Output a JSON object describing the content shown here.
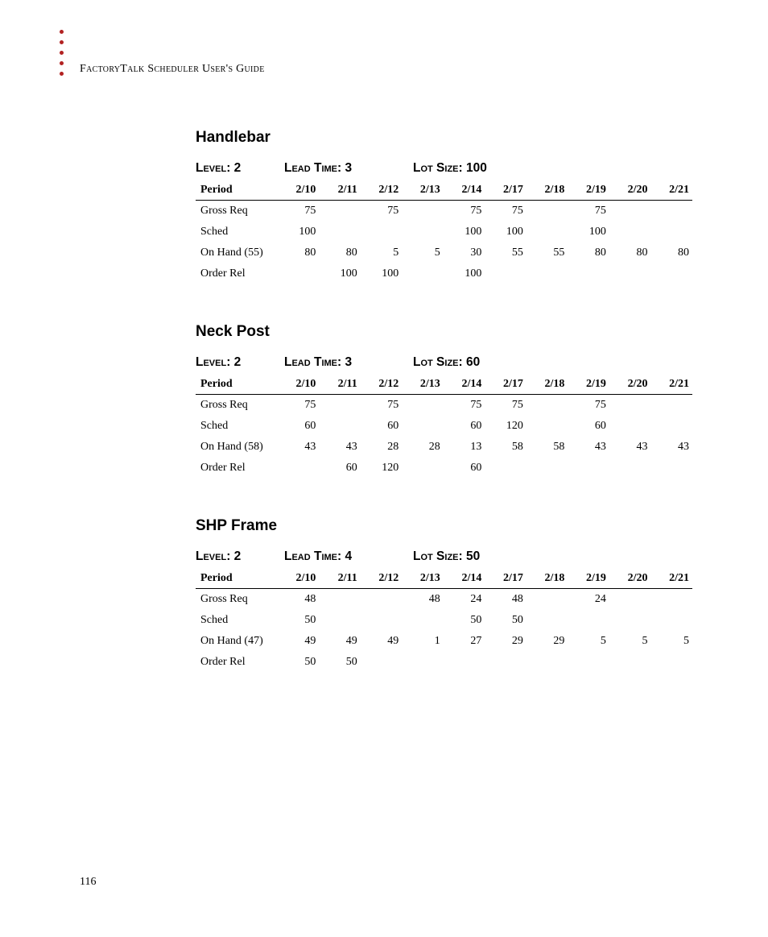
{
  "header": "FactoryTalk Scheduler User's Guide",
  "pageNumber": "116",
  "periods": [
    "2/10",
    "2/11",
    "2/12",
    "2/13",
    "2/14",
    "2/17",
    "2/18",
    "2/19",
    "2/20",
    "2/21"
  ],
  "sections": [
    {
      "title": "Handlebar",
      "level": "Level: 2",
      "lead": "Lead Time: 3",
      "lot": "Lot Size: 100",
      "rows": [
        {
          "label": "Gross Req",
          "vals": [
            "75",
            "",
            "75",
            "",
            "75",
            "75",
            "",
            "75",
            "",
            ""
          ]
        },
        {
          "label": "Sched",
          "vals": [
            "100",
            "",
            "",
            "",
            "100",
            "100",
            "",
            "100",
            "",
            ""
          ]
        },
        {
          "label": "On Hand (55)",
          "vals": [
            "80",
            "80",
            "5",
            "5",
            "30",
            "55",
            "55",
            "80",
            "80",
            "80"
          ]
        },
        {
          "label": "Order Rel",
          "vals": [
            "",
            "100",
            "100",
            "",
            "100",
            "",
            "",
            "",
            "",
            ""
          ]
        }
      ]
    },
    {
      "title": "Neck Post",
      "level": "Level: 2",
      "lead": "Lead Time: 3",
      "lot": "Lot Size: 60",
      "rows": [
        {
          "label": "Gross Req",
          "vals": [
            "75",
            "",
            "75",
            "",
            "75",
            "75",
            "",
            "75",
            "",
            ""
          ]
        },
        {
          "label": "Sched",
          "vals": [
            "60",
            "",
            "60",
            "",
            "60",
            "120",
            "",
            "60",
            "",
            ""
          ]
        },
        {
          "label": "On Hand (58)",
          "vals": [
            "43",
            "43",
            "28",
            "28",
            "13",
            "58",
            "58",
            "43",
            "43",
            "43"
          ]
        },
        {
          "label": "Order Rel",
          "vals": [
            "",
            "60",
            "120",
            "",
            "60",
            "",
            "",
            "",
            "",
            ""
          ]
        }
      ]
    },
    {
      "title": "SHP Frame",
      "level": "Level: 2",
      "lead": "Lead Time: 4",
      "lot": "Lot Size: 50",
      "rows": [
        {
          "label": "Gross Req",
          "vals": [
            "48",
            "",
            "",
            "48",
            "24",
            "48",
            "",
            "24",
            "",
            ""
          ]
        },
        {
          "label": "Sched",
          "vals": [
            "50",
            "",
            "",
            "",
            "50",
            "50",
            "",
            "",
            "",
            ""
          ]
        },
        {
          "label": "On Hand (47)",
          "vals": [
            "49",
            "49",
            "49",
            "1",
            "27",
            "29",
            "29",
            "5",
            "5",
            "5"
          ]
        },
        {
          "label": "Order Rel",
          "vals": [
            "50",
            "50",
            "",
            "",
            "",
            "",
            "",
            "",
            "",
            ""
          ]
        }
      ]
    }
  ],
  "bulletColor": "#b22222",
  "bulletCount": 5
}
